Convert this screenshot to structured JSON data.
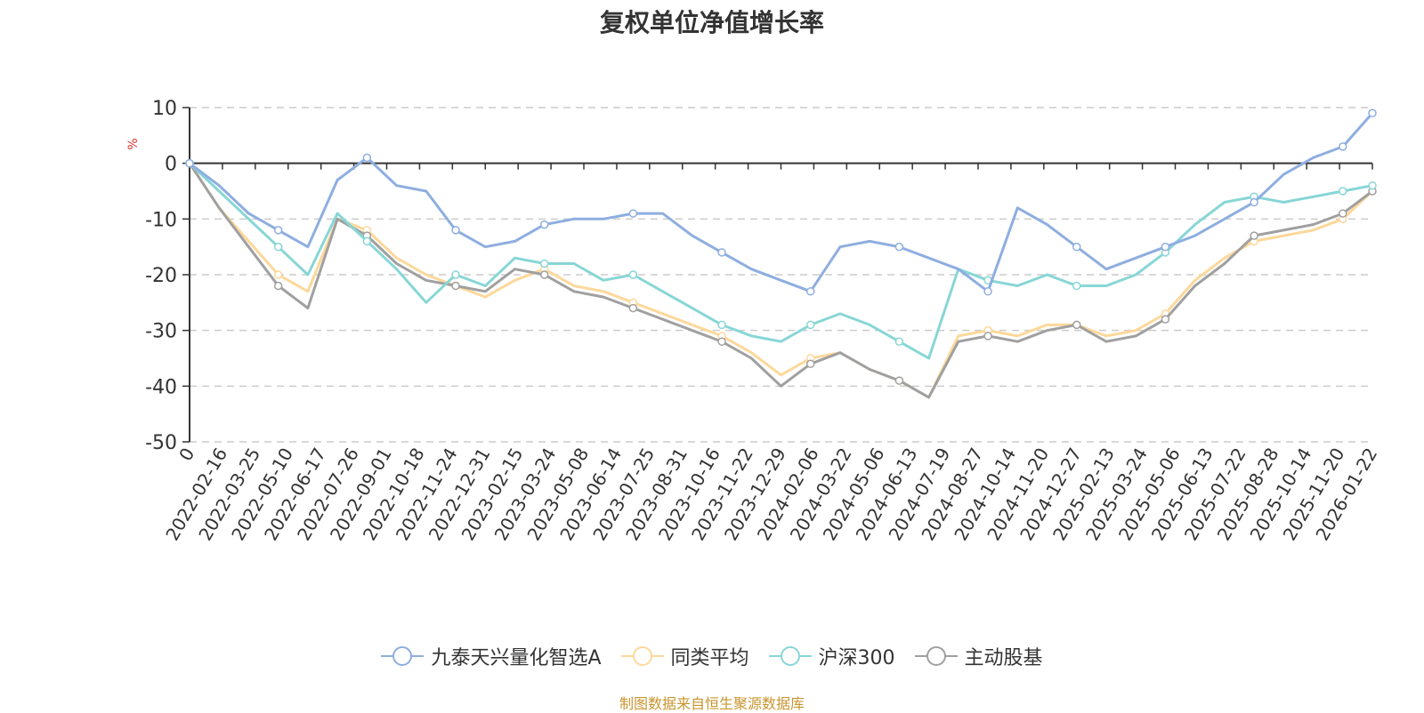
{
  "chart_data": {
    "type": "line",
    "title": "复权单位净值增长率",
    "ylabel": "%",
    "ylim": [
      -50,
      10
    ],
    "yticks": [
      "10",
      "0",
      "-10",
      "-20",
      "-30",
      "-40",
      "-50"
    ],
    "grid": true,
    "legend_position": "bottom",
    "x_tick_labels": [
      "0",
      "2022-02-16",
      "2022-03-25",
      "2022-05-10",
      "2022-06-17",
      "2022-07-26",
      "2022-09-01",
      "2022-10-18",
      "2022-11-24",
      "2022-12-31",
      "2023-02-15",
      "2023-03-24",
      "2023-05-08",
      "2023-06-14",
      "2023-07-25",
      "2023-08-31",
      "2023-10-16",
      "2023-11-22",
      "2023-12-29",
      "2024-02-06",
      "2024-03-22",
      "2024-05-06",
      "2024-06-13",
      "2024-07-19",
      "2024-08-27",
      "2024-10-14",
      "2024-11-20",
      "2024-12-27",
      "2025-02-13",
      "2025-03-24",
      "2025-05-06",
      "2025-06-13",
      "2025-07-22",
      "2025-08-28",
      "2025-10-14",
      "2025-11-20",
      "2026-01-22"
    ],
    "series": [
      {
        "name": "九泰天兴量化智选A",
        "color": "#8eaee0",
        "values": [
          0,
          -4,
          -9,
          -12,
          -15,
          -3,
          1,
          -4,
          -5,
          -12,
          -15,
          -14,
          -11,
          -10,
          -10,
          -9,
          -9,
          -13,
          -16,
          -19,
          -21,
          -23,
          -15,
          -14,
          -15,
          -17,
          -19,
          -23,
          -8,
          -11,
          -15,
          -19,
          -17,
          -15,
          -13,
          -10,
          -7,
          -2,
          1,
          3,
          9
        ]
      },
      {
        "name": "同类平均",
        "color": "#fdd89a",
        "values": [
          0,
          -8,
          -14,
          -20,
          -23,
          -10,
          -12,
          -17,
          -20,
          -22,
          -24,
          -21,
          -19,
          -22,
          -23,
          -25,
          -27,
          -29,
          -31,
          -34,
          -38,
          -35,
          -34,
          -37,
          -39,
          -42,
          -31,
          -30,
          -31,
          -29,
          -29,
          -31,
          -30,
          -27,
          -21,
          -17,
          -14,
          -13,
          -12,
          -10,
          -5
        ]
      },
      {
        "name": "沪深300",
        "color": "#88d6d6",
        "values": [
          0,
          -5,
          -10,
          -15,
          -20,
          -9,
          -14,
          -19,
          -25,
          -20,
          -22,
          -17,
          -18,
          -18,
          -21,
          -20,
          -23,
          -26,
          -29,
          -31,
          -32,
          -29,
          -27,
          -29,
          -32,
          -35,
          -19,
          -21,
          -22,
          -20,
          -22,
          -22,
          -20,
          -16,
          -11,
          -7,
          -6,
          -7,
          -6,
          -5,
          -4
        ]
      },
      {
        "name": "主动股基",
        "color": "#a0a0a0",
        "values": [
          0,
          -8,
          -15,
          -22,
          -26,
          -10,
          -13,
          -18,
          -21,
          -22,
          -23,
          -19,
          -20,
          -23,
          -24,
          -26,
          -28,
          -30,
          -32,
          -35,
          -40,
          -36,
          -34,
          -37,
          -39,
          -42,
          -32,
          -31,
          -32,
          -30,
          -29,
          -32,
          -31,
          -28,
          -22,
          -18,
          -13,
          -12,
          -11,
          -9,
          -5
        ]
      }
    ]
  },
  "legend": {
    "items": [
      {
        "label": "九泰天兴量化智选A"
      },
      {
        "label": "同类平均"
      },
      {
        "label": "沪深300"
      },
      {
        "label": "主动股基"
      }
    ]
  },
  "footer": {
    "source": "制图数据来自恒生聚源数据库"
  }
}
